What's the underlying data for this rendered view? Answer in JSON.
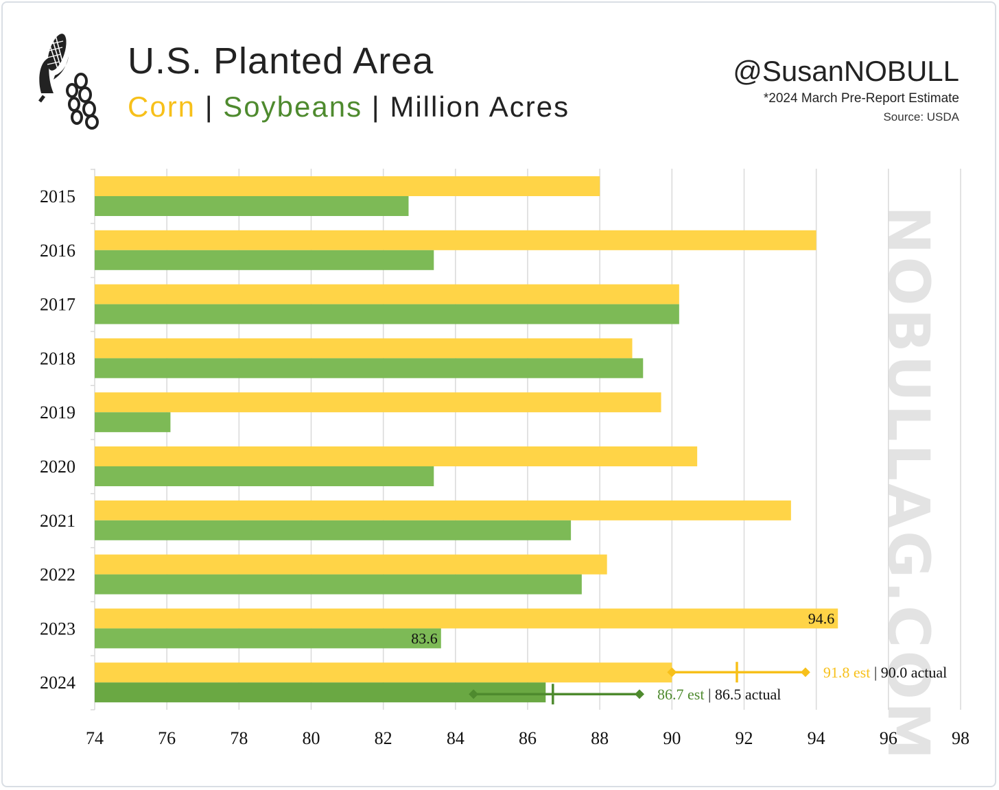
{
  "header": {
    "title": "U.S. Planted Area",
    "subtitle_corn": "Corn",
    "subtitle_sep1": " | ",
    "subtitle_soy": "Soybeans",
    "subtitle_sep2": " | ",
    "subtitle_unit": "Million Acres",
    "handle": "@SusanNOBULL",
    "note": "*2024 March Pre-Report Estimate",
    "source": "Source: USDA",
    "watermark": "NOBULLAG.COM"
  },
  "colors": {
    "corn": "#FFD447",
    "corn_text": "#F7C01A",
    "soy": "#7DBA56",
    "soy_2024": "#6AA843",
    "soy_text": "#4E8A2E",
    "grid": "#d9d9d9"
  },
  "icons": [
    "corn-cob-icon",
    "soybean-pod-icon"
  ],
  "chart_data": {
    "type": "bar",
    "orientation": "horizontal",
    "categories": [
      "2015",
      "2016",
      "2017",
      "2018",
      "2019",
      "2020",
      "2021",
      "2022",
      "2023",
      "2024"
    ],
    "series": [
      {
        "name": "Corn",
        "values": [
          88.0,
          94.0,
          90.2,
          88.9,
          89.7,
          90.7,
          93.3,
          88.2,
          94.6,
          90.0
        ]
      },
      {
        "name": "Soybeans",
        "values": [
          82.7,
          83.4,
          90.2,
          89.2,
          76.1,
          83.4,
          87.2,
          87.5,
          83.6,
          86.5
        ]
      }
    ],
    "xlim": [
      74,
      98
    ],
    "xticks": [
      "74",
      "76",
      "78",
      "80",
      "82",
      "84",
      "86",
      "88",
      "90",
      "92",
      "94",
      "96",
      "98"
    ],
    "xlabel": "",
    "ylabel": "",
    "grid": "vertical",
    "data_labels": [
      {
        "category": "2023",
        "series": "Corn",
        "text": "94.6"
      },
      {
        "category": "2023",
        "series": "Soybeans",
        "text": "83.6"
      }
    ],
    "estimates_2024": [
      {
        "series": "Corn",
        "est": 91.8,
        "range": [
          90.0,
          93.7
        ],
        "est_label": "91.8 est",
        "sep": " | ",
        "actual_label": "90.0 actual"
      },
      {
        "series": "Soybeans",
        "est": 86.7,
        "range": [
          84.5,
          89.1
        ],
        "est_label": "86.7 est",
        "sep": " | ",
        "actual_label": "86.5 actual"
      }
    ]
  }
}
